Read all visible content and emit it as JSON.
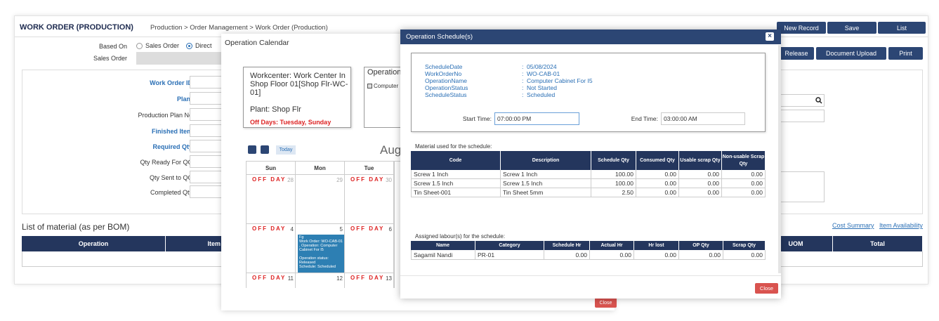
{
  "header": {
    "title": "WORK ORDER (PRODUCTION)",
    "breadcrumb": "Production > Order Management > Work Order (Production)",
    "buttons": [
      "New Record",
      "Save",
      "List"
    ]
  },
  "form": {
    "based_on_label": "Based On",
    "options": [
      "Sales Order",
      "Direct"
    ],
    "sales_order_label": "Sales Order",
    "fields": [
      "Work Order ID",
      "Plant",
      "Production Plan No",
      "Finished Item",
      "Required Qty",
      "Qty Ready For QC",
      "Qty Sent to QC",
      "Completed Qty"
    ],
    "actions": [
      "Release",
      "Document Upload",
      "Print"
    ]
  },
  "bom": {
    "title": "List of material (as per BOM)",
    "links": [
      "Cost Summary",
      "Item Availability"
    ],
    "columns": [
      "Operation",
      "Item ID",
      "UOM",
      "Total"
    ]
  },
  "calendar": {
    "title": "Operation Calendar",
    "workcenter": "Workcenter: Work Center In Shop Floor 01[Shop Flr-WC-01]",
    "plant": "Plant: Shop Flr",
    "off_days": "Off Days: Tuesday, Sunday",
    "operation_title": "Operation",
    "operation_item": "Computer",
    "today": "Today",
    "month": "Aug",
    "weekdays": [
      "Sun",
      "Mon",
      "Tue"
    ],
    "off_label": "OFF DAY",
    "weeks": [
      [
        {
          "off": true,
          "day": "28"
        },
        {
          "off": false,
          "day": "29"
        },
        {
          "off": true,
          "day": "30"
        }
      ],
      [
        {
          "off": true,
          "day": "4"
        },
        {
          "off": false,
          "day": "5"
        },
        {
          "off": true,
          "day": "6"
        }
      ],
      [
        {
          "off": true,
          "day": "11"
        },
        {
          "off": false,
          "day": "12"
        },
        {
          "off": true,
          "day": "13"
        }
      ]
    ],
    "event": [
      "Fg",
      "Work Order: WO-CAB-01 , Operation: Computer Cabinet For I5",
      "",
      "Operation status: Released",
      "Schedule: Scheduled"
    ],
    "close": "Close"
  },
  "schedule": {
    "title": "Operation Schedule(s)",
    "separator": ":",
    "info": [
      [
        "ScheduleDate",
        "05/08/2024"
      ],
      [
        "WorkOrderNo",
        "WO-CAB-01"
      ],
      [
        "OperationName",
        "Computer Cabinet For I5"
      ],
      [
        "OperationStatus",
        "Not Started"
      ],
      [
        "ScheduleStatus",
        "Scheduled"
      ]
    ],
    "start_label": "Start Time:",
    "start": "07:00:00 PM",
    "end_label": "End Time:",
    "end": "03:00:00 AM",
    "materials_title": "Material used for the schedule:",
    "material_columns": [
      "Code",
      "Description",
      "Schedule Qty",
      "Consumed Qty",
      "Usable scrap Qty",
      "Non-usable Scrap Qty"
    ],
    "materials": [
      [
        "Screw 1 Inch",
        "Screw 1 Inch",
        "100.00",
        "0.00",
        "0.00",
        "0.00"
      ],
      [
        "Screw 1.5 Inch",
        "Screw 1.5 Inch",
        "100.00",
        "0.00",
        "0.00",
        "0.00"
      ],
      [
        "Tin Sheet-001",
        "Tin Sheet 5mm",
        "2.50",
        "0.00",
        "0.00",
        "0.00"
      ]
    ],
    "labour_title": "Assigned labour(s) for the schedule:",
    "labour_columns": [
      "Name",
      "Category",
      "Schedule Hr",
      "Actual Hr",
      "Hr lost",
      "OP Qty",
      "Scrap Qty"
    ],
    "labour": [
      [
        "Sagamil Nandi",
        "PR-01",
        "0.00",
        "0.00",
        "0.00",
        "0.00",
        "0.00"
      ]
    ],
    "close": "Close"
  }
}
